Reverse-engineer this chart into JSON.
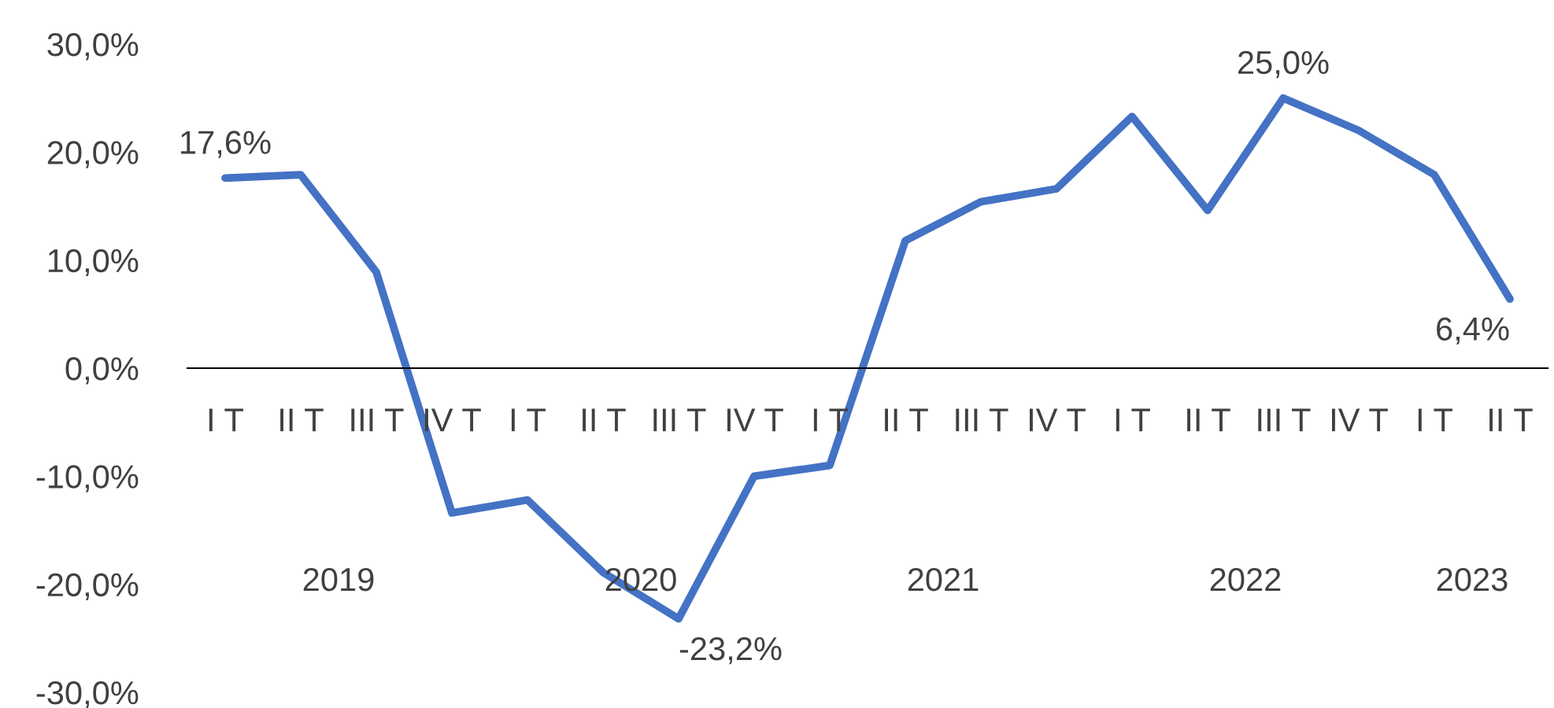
{
  "chart_data": {
    "type": "line",
    "categories": [
      "I T",
      "II T",
      "III T",
      "IV T",
      "I T",
      "II T",
      "III T",
      "IV T",
      "I T",
      "II T",
      "III T",
      "IV T",
      "I T",
      "II T",
      "III T",
      "IV T",
      "I T",
      "II T"
    ],
    "series": [
      {
        "color": "#4472c4",
        "values": [
          17.6,
          17.9,
          8.9,
          -13.4,
          -12.2,
          -18.9,
          -23.2,
          -10.0,
          -9.0,
          11.8,
          15.4,
          16.6,
          23.3,
          14.6,
          25.0,
          22.0,
          17.9,
          6.4
        ],
        "value_labels": [
          "17,6%",
          null,
          null,
          null,
          null,
          null,
          "-23,2%",
          null,
          null,
          null,
          null,
          null,
          null,
          null,
          "25,0%",
          null,
          null,
          "6,4%"
        ]
      }
    ],
    "annotations": [
      "2019",
      "2020",
      "2021",
      "2022",
      "2023"
    ],
    "ylim": [
      -30,
      30
    ],
    "yticks": [
      {
        "value": -30,
        "label": "-30,0%"
      },
      {
        "value": -20,
        "label": "-20,0%"
      },
      {
        "value": -10,
        "label": "-10,0%"
      },
      {
        "value": 0,
        "label": "0,0%"
      },
      {
        "value": 10,
        "label": "10,0%"
      },
      {
        "value": 20,
        "label": "20,0%"
      },
      {
        "value": 30,
        "label": "30,0%"
      }
    ],
    "grid": false,
    "marker": "none",
    "line_style": "solid"
  }
}
